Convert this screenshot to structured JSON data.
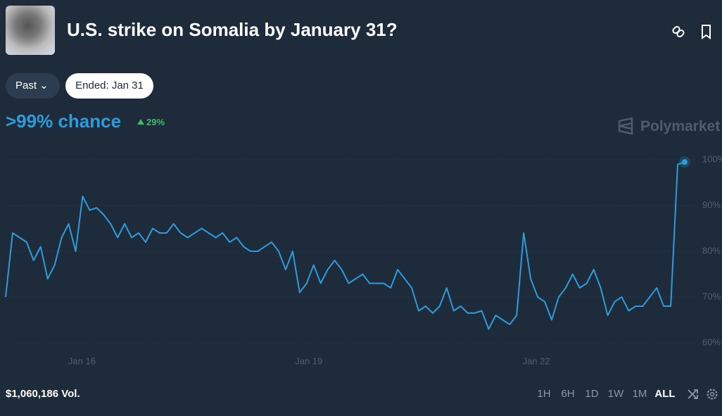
{
  "header": {
    "title": "U.S. strike on Somalia by January 31?"
  },
  "filters": {
    "past": "Past",
    "ended": "Ended: Jan 31"
  },
  "summary": {
    "chance": ">99% chance",
    "change": "29%"
  },
  "brand": "Polymarket",
  "volume": "$1,060,186 Vol.",
  "ranges": [
    "1H",
    "6H",
    "1D",
    "1W",
    "1M",
    "ALL"
  ],
  "chart_data": {
    "type": "line",
    "color": "#2d9cdb",
    "values": [
      70,
      84,
      83,
      82,
      78,
      81,
      74,
      77,
      83,
      86,
      80,
      92,
      89,
      89.5,
      88,
      86,
      83,
      86,
      83,
      84,
      82,
      85,
      84,
      84,
      86,
      84,
      83,
      84,
      85,
      84,
      83,
      84,
      82,
      83,
      81,
      80,
      80,
      81,
      82,
      80,
      76,
      80,
      71,
      73,
      77,
      73,
      76,
      78,
      76,
      73,
      74,
      75,
      73,
      73,
      73,
      72,
      76,
      74,
      72,
      67,
      68,
      66.5,
      68,
      72,
      67,
      68,
      66.5,
      66.5,
      67,
      63,
      66,
      65,
      64,
      66,
      84,
      74,
      70,
      69,
      65,
      70,
      72,
      75,
      72,
      73,
      76,
      72,
      66,
      69,
      70,
      67,
      68,
      68,
      70,
      72,
      68,
      68,
      99,
      99.5
    ],
    "xlim": [
      0,
      97
    ],
    "xticks": [
      {
        "value": 10.9,
        "label": "Jan 16"
      },
      {
        "value": 43.3,
        "label": "Jan 19"
      },
      {
        "value": 75.8,
        "label": "Jan 22"
      }
    ],
    "ylim": [
      58,
      102.5
    ],
    "yticks": [
      {
        "value": 60,
        "label": "60%"
      },
      {
        "value": 70,
        "label": "70%"
      },
      {
        "value": 80,
        "label": "80%"
      },
      {
        "value": 90,
        "label": "90%"
      },
      {
        "value": 100,
        "label": "100%"
      }
    ],
    "grid": true
  }
}
